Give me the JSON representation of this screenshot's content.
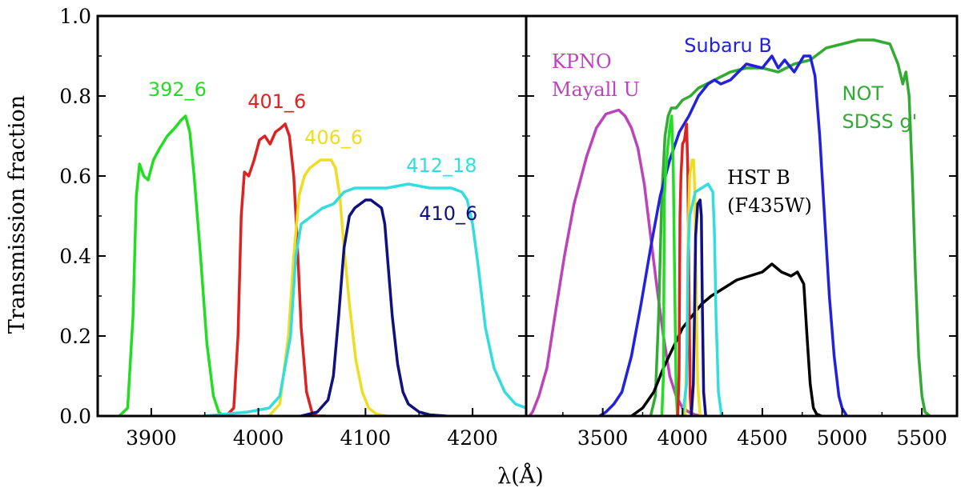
{
  "chart_data": {
    "type": "line",
    "ylabel": "Transmission fraction",
    "xlabel": "λ(Å)",
    "ylim": [
      0.0,
      1.0
    ],
    "yticks": [
      "0.0",
      "0.2",
      "0.4",
      "0.6",
      "0.8",
      "1.0"
    ],
    "panels": [
      {
        "name": "left",
        "xlim": [
          3850,
          4250
        ],
        "xticks": [
          "3900",
          "4000",
          "4100",
          "4200"
        ],
        "series": [
          {
            "name": "392_6",
            "color": "#22dd22",
            "label": "392_6",
            "x": [
              3870,
              3878,
              3883,
              3886,
              3889,
              3893,
              3897,
              3902,
              3908,
              3915,
              3922,
              3928,
              3932,
              3936,
              3940,
              3946,
              3952,
              3958,
              3963,
              3968,
              3975
            ],
            "y": [
              0.0,
              0.02,
              0.25,
              0.55,
              0.63,
              0.6,
              0.59,
              0.64,
              0.67,
              0.7,
              0.72,
              0.74,
              0.75,
              0.71,
              0.6,
              0.4,
              0.18,
              0.05,
              0.01,
              0.0,
              0.0
            ]
          },
          {
            "name": "401_6",
            "color": "#dd2222",
            "label": "401_6",
            "x": [
              3970,
              3977,
              3981,
              3984,
              3987,
              3991,
              3996,
              4001,
              4006,
              4011,
              4016,
              4021,
              4025,
              4029,
              4033,
              4036,
              4040,
              4045,
              4050,
              4055,
              4062
            ],
            "y": [
              0.0,
              0.02,
              0.2,
              0.5,
              0.61,
              0.6,
              0.64,
              0.69,
              0.7,
              0.68,
              0.71,
              0.72,
              0.73,
              0.7,
              0.6,
              0.45,
              0.22,
              0.06,
              0.01,
              0.0,
              0.0
            ]
          },
          {
            "name": "406_6",
            "color": "#eedd22",
            "label": "406_6",
            "x": [
              4010,
              4020,
              4028,
              4033,
              4038,
              4043,
              4048,
              4053,
              4058,
              4063,
              4068,
              4072,
              4076,
              4080,
              4085,
              4091,
              4097,
              4103,
              4110,
              4120
            ],
            "y": [
              0.0,
              0.03,
              0.2,
              0.4,
              0.55,
              0.6,
              0.62,
              0.63,
              0.64,
              0.64,
              0.64,
              0.62,
              0.55,
              0.42,
              0.28,
              0.14,
              0.06,
              0.02,
              0.005,
              0.0
            ]
          },
          {
            "name": "412_18",
            "color": "#33dddd",
            "label": "412_18",
            "x": [
              3950,
              3990,
              4010,
              4020,
              4030,
              4035,
              4040,
              4050,
              4060,
              4070,
              4080,
              4090,
              4100,
              4120,
              4140,
              4160,
              4180,
              4190,
              4195,
              4200,
              4205,
              4212,
              4220,
              4230,
              4240,
              4250
            ],
            "y": [
              0.0,
              0.01,
              0.02,
              0.05,
              0.2,
              0.4,
              0.48,
              0.5,
              0.52,
              0.53,
              0.56,
              0.57,
              0.57,
              0.57,
              0.58,
              0.57,
              0.57,
              0.56,
              0.54,
              0.48,
              0.38,
              0.22,
              0.12,
              0.06,
              0.03,
              0.02
            ]
          },
          {
            "name": "410_6",
            "color": "#101080",
            "label": "410_6",
            "x": [
              4040,
              4055,
              4065,
              4070,
              4075,
              4080,
              4085,
              4090,
              4095,
              4100,
              4105,
              4110,
              4115,
              4118,
              4121,
              4125,
              4130,
              4135,
              4140,
              4150,
              4160,
              4175
            ],
            "y": [
              0.0,
              0.01,
              0.04,
              0.1,
              0.25,
              0.42,
              0.5,
              0.52,
              0.53,
              0.54,
              0.54,
              0.53,
              0.52,
              0.48,
              0.38,
              0.25,
              0.13,
              0.06,
              0.03,
              0.01,
              0.003,
              0.0
            ]
          }
        ],
        "labels": [
          {
            "text": "392_6",
            "color": "#22dd22",
            "x": 3897,
            "y": 0.8,
            "serif": false
          },
          {
            "text": "401_6",
            "color": "#dd2222",
            "x": 3990,
            "y": 0.77,
            "serif": false
          },
          {
            "text": "406_6",
            "color": "#eedd22",
            "x": 4043,
            "y": 0.68,
            "serif": false
          },
          {
            "text": "412_18",
            "color": "#33dddd",
            "x": 4138,
            "y": 0.61,
            "serif": false
          },
          {
            "text": "410_6",
            "color": "#101080",
            "x": 4150,
            "y": 0.49,
            "serif": false
          }
        ]
      },
      {
        "name": "right",
        "xlim": [
          3020,
          5720
        ],
        "xticks": [
          "3500",
          "4000",
          "4500",
          "5000",
          "5500"
        ],
        "series": [
          {
            "name": "KPNO Mayall U",
            "color": "#bb44bb",
            "label": "KPNO Mayall U",
            "x": [
              3040,
              3060,
              3100,
              3150,
              3200,
              3260,
              3320,
              3400,
              3460,
              3520,
              3560,
              3600,
              3640,
              3680,
              3720,
              3760,
              3800,
              3840,
              3880,
              3920,
              3960,
              4000,
              4040,
              4080,
              4120
            ],
            "y": [
              0.0,
              0.01,
              0.05,
              0.12,
              0.25,
              0.4,
              0.53,
              0.65,
              0.72,
              0.755,
              0.76,
              0.765,
              0.75,
              0.72,
              0.67,
              0.58,
              0.45,
              0.32,
              0.2,
              0.1,
              0.05,
              0.02,
              0.01,
              0.003,
              0.0
            ]
          },
          {
            "name": "NOT SDSS g'",
            "color": "#33aa33",
            "label": "NOT SDSS g'",
            "x": [
              3800,
              3830,
              3850,
              3870,
              3890,
              3910,
              3930,
              3960,
              4000,
              4050,
              4100,
              4200,
              4300,
              4400,
              4500,
              4600,
              4700,
              4800,
              4900,
              5000,
              5100,
              5200,
              5300,
              5350,
              5380,
              5400,
              5420,
              5440,
              5460,
              5480,
              5500,
              5520,
              5550
            ],
            "y": [
              0.0,
              0.05,
              0.25,
              0.55,
              0.7,
              0.75,
              0.77,
              0.77,
              0.79,
              0.8,
              0.82,
              0.84,
              0.86,
              0.87,
              0.87,
              0.86,
              0.88,
              0.89,
              0.92,
              0.93,
              0.94,
              0.94,
              0.93,
              0.88,
              0.83,
              0.86,
              0.8,
              0.6,
              0.35,
              0.15,
              0.05,
              0.01,
              0.0
            ]
          },
          {
            "name": "Subaru B",
            "color": "#2222dd",
            "label": "Subaru B",
            "x": [
              3480,
              3520,
              3570,
              3620,
              3680,
              3740,
              3800,
              3860,
              3920,
              3980,
              4040,
              4100,
              4160,
              4200,
              4240,
              4300,
              4400,
              4500,
              4560,
              4600,
              4640,
              4700,
              4760,
              4800,
              4830,
              4860,
              4890,
              4920,
              4950,
              4980,
              5000,
              5030
            ],
            "y": [
              0.0,
              0.01,
              0.03,
              0.06,
              0.15,
              0.28,
              0.42,
              0.55,
              0.64,
              0.71,
              0.75,
              0.8,
              0.83,
              0.84,
              0.83,
              0.84,
              0.88,
              0.87,
              0.9,
              0.87,
              0.89,
              0.86,
              0.9,
              0.9,
              0.85,
              0.7,
              0.5,
              0.3,
              0.15,
              0.05,
              0.02,
              0.0
            ]
          },
          {
            "name": "HST B (F435W)",
            "color": "#000000",
            "label": "HST B (F435W)",
            "x": [
              3680,
              3750,
              3820,
              3880,
              3940,
              4000,
              4060,
              4120,
              4180,
              4260,
              4340,
              4420,
              4500,
              4560,
              4620,
              4680,
              4720,
              4760,
              4780,
              4800,
              4820,
              4840,
              4870
            ],
            "y": [
              0.0,
              0.02,
              0.06,
              0.12,
              0.17,
              0.22,
              0.25,
              0.28,
              0.3,
              0.32,
              0.34,
              0.35,
              0.36,
              0.38,
              0.36,
              0.35,
              0.36,
              0.33,
              0.2,
              0.08,
              0.02,
              0.005,
              0.0
            ]
          },
          {
            "name": "392_6",
            "color": "#22dd22",
            "label": "",
            "x": [
              3870,
              3880,
              3886,
              3893,
              3905,
              3920,
              3932,
              3942,
              3952,
              3960,
              3968
            ],
            "y": [
              0.0,
              0.1,
              0.55,
              0.6,
              0.66,
              0.72,
              0.75,
              0.62,
              0.3,
              0.06,
              0.0
            ]
          },
          {
            "name": "401_6",
            "color": "#dd2222",
            "label": "",
            "x": [
              3970,
              3978,
              3984,
              3990,
              4000,
              4012,
              4025,
              4033,
              4040,
              4048,
              4056
            ],
            "y": [
              0.0,
              0.1,
              0.5,
              0.6,
              0.68,
              0.69,
              0.73,
              0.62,
              0.35,
              0.05,
              0.0
            ]
          },
          {
            "name": "406_6",
            "color": "#eedd22",
            "label": "",
            "x": [
              4015,
              4028,
              4035,
              4045,
              4060,
              4070,
              4078,
              4086,
              4095,
              4110
            ],
            "y": [
              0.0,
              0.18,
              0.45,
              0.6,
              0.64,
              0.64,
              0.55,
              0.3,
              0.08,
              0.0
            ]
          },
          {
            "name": "412_18",
            "color": "#33dddd",
            "label": "",
            "x": [
              4000,
              4025,
              4035,
              4045,
              4080,
              4120,
              4160,
              4190,
              4200,
              4210,
              4225,
              4245
            ],
            "y": [
              0.0,
              0.08,
              0.4,
              0.5,
              0.56,
              0.57,
              0.58,
              0.56,
              0.46,
              0.25,
              0.06,
              0.0
            ]
          },
          {
            "name": "410_6",
            "color": "#101080",
            "label": "",
            "x": [
              4055,
              4068,
              4075,
              4082,
              4095,
              4110,
              4118,
              4124,
              4132,
              4145
            ],
            "y": [
              0.0,
              0.08,
              0.25,
              0.45,
              0.53,
              0.54,
              0.5,
              0.28,
              0.06,
              0.0
            ]
          }
        ],
        "labels": [
          {
            "text": "KPNO",
            "color": "#bb44bb",
            "x": 3180,
            "y": 0.87,
            "serif": true
          },
          {
            "text": "Mayall U",
            "color": "#bb44bb",
            "x": 3180,
            "y": 0.8,
            "serif": true
          },
          {
            "text": "Subaru B",
            "color": "#2222dd",
            "x": 4010,
            "y": 0.91,
            "serif": false
          },
          {
            "text": "NOT",
            "color": "#33aa33",
            "x": 5000,
            "y": 0.79,
            "serif": false
          },
          {
            "text": "SDSS g'",
            "color": "#33aa33",
            "x": 5000,
            "y": 0.72,
            "serif": false
          },
          {
            "text": "HST B",
            "color": "#000000",
            "x": 4280,
            "y": 0.58,
            "serif": true
          },
          {
            "text": "(F435W)",
            "color": "#000000",
            "x": 4280,
            "y": 0.51,
            "serif": true
          }
        ]
      }
    ]
  }
}
